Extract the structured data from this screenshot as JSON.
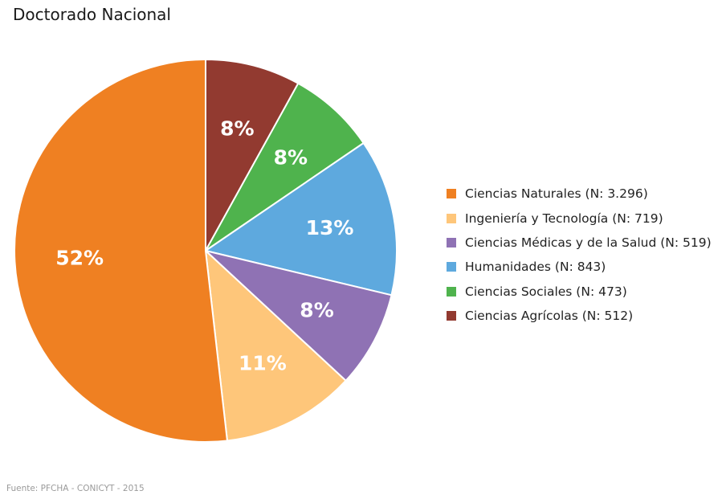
{
  "title": "Doctorado Nacional",
  "source": "Fuente: PFCHA - CONICYT - 2015",
  "chart_data": {
    "type": "pie",
    "title": "Doctorado Nacional",
    "start_angle_deg": 0,
    "direction": "clockwise",
    "legend_position": "right",
    "slices": [
      {
        "legend": "Ciencias Agrícolas (N: 512)",
        "value": 512,
        "label": "8%",
        "color": "#923a30"
      },
      {
        "legend": "Ciencias Sociales (N: 473)",
        "value": 473,
        "label": "8%",
        "color": "#4fb34d"
      },
      {
        "legend": "Humanidades (N: 843)",
        "value": 843,
        "label": "13%",
        "color": "#5ea9de"
      },
      {
        "legend": "Ciencias Médicas y de la Salud (N: 519)",
        "value": 519,
        "label": "8%",
        "color": "#8f72b4"
      },
      {
        "legend": "Ingeniería y Tecnología (N: 719)",
        "value": 719,
        "label": "11%",
        "color": "#fec67a"
      },
      {
        "legend": "Ciencias Naturales (N: 3.296)",
        "value": 3296,
        "label": "52%",
        "color": "#ef8022"
      }
    ],
    "legend_order": [
      "Ciencias Naturales (N: 3.296)",
      "Ingeniería y Tecnología (N: 719)",
      "Ciencias Médicas y de la Salud (N: 519)",
      "Humanidades (N: 843)",
      "Ciencias Sociales (N: 473)",
      "Ciencias Agrícolas (N: 512)"
    ]
  }
}
